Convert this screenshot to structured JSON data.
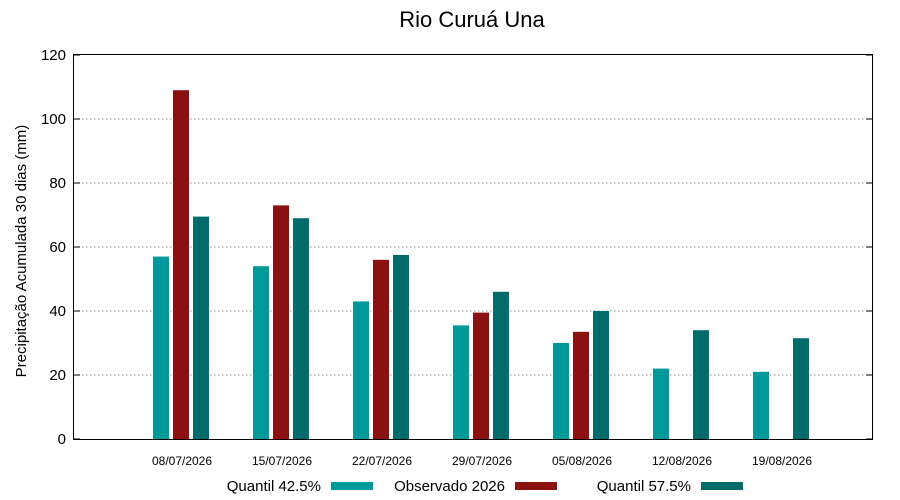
{
  "chart_data": {
    "type": "bar",
    "title": "Rio Curuá Una",
    "xlabel": "",
    "ylabel": "Precipitação Acumulada 30 dias (mm)",
    "ylim": [
      0,
      120
    ],
    "yticks": [
      0,
      20,
      40,
      60,
      80,
      100,
      120
    ],
    "grid": true,
    "legend_position": "bottom",
    "categories": [
      "08/07/2026",
      "15/07/2026",
      "22/07/2026",
      "29/07/2026",
      "05/08/2026",
      "12/08/2026",
      "19/08/2026"
    ],
    "series": [
      {
        "name": "Quantil 42.5%",
        "color": "#009999",
        "values": [
          57,
          54,
          43,
          35.5,
          30,
          22,
          21
        ]
      },
      {
        "name": "Observado 2026",
        "color": "#8b1010",
        "values": [
          109,
          73,
          56,
          39.5,
          33.5,
          null,
          null
        ]
      },
      {
        "name": "Quantil 57.5%",
        "color": "#006b6b",
        "values": [
          69.5,
          69,
          57.5,
          46,
          40,
          34,
          31.5
        ]
      }
    ]
  }
}
